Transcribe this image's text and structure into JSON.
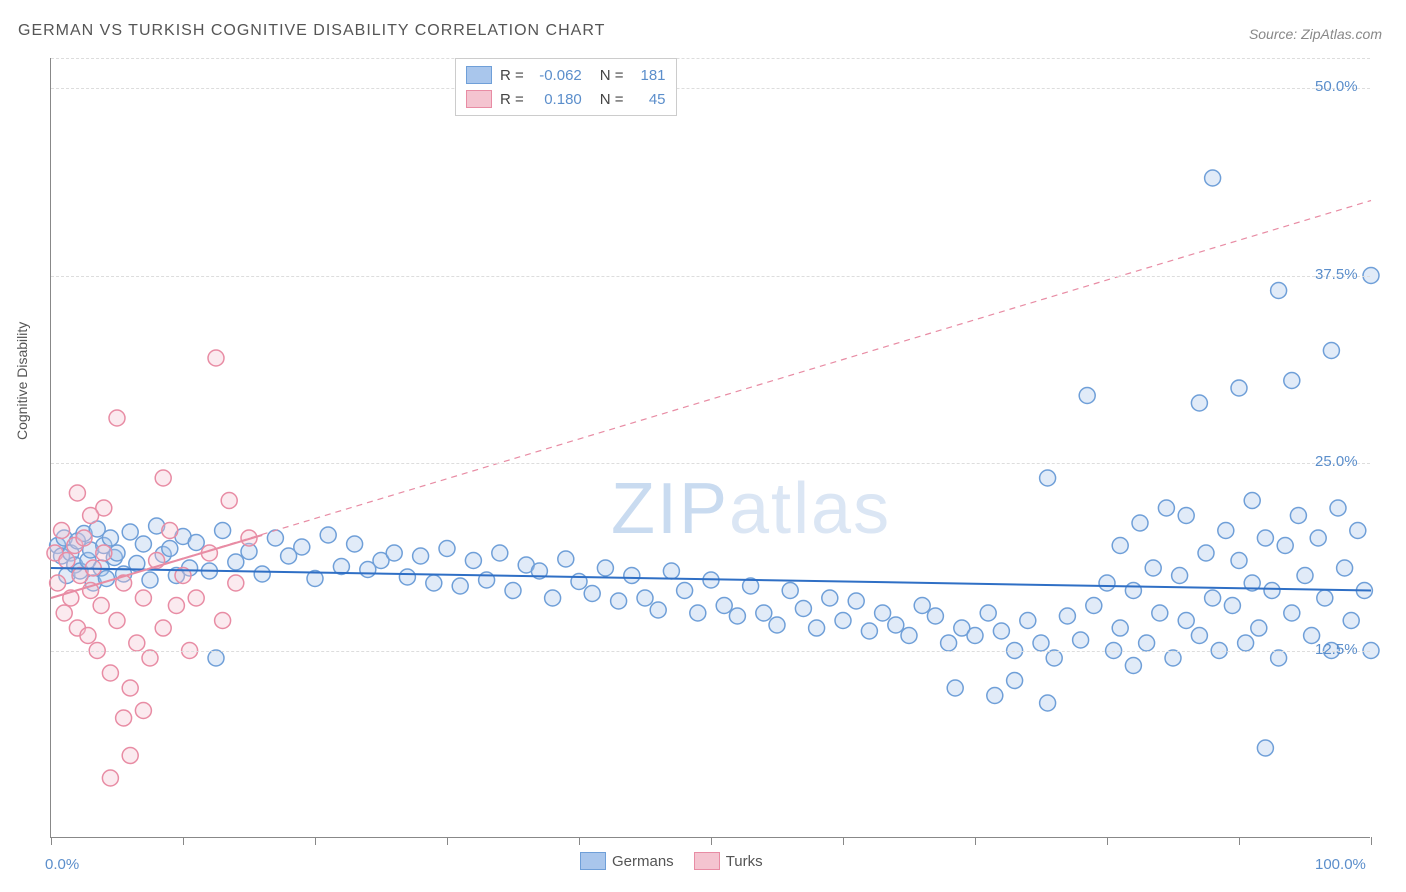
{
  "title": "GERMAN VS TURKISH COGNITIVE DISABILITY CORRELATION CHART",
  "source": "Source: ZipAtlas.com",
  "y_axis_label": "Cognitive Disability",
  "watermark": "ZIPatlas",
  "chart": {
    "type": "scatter",
    "xlim": [
      0,
      100
    ],
    "ylim": [
      0,
      52
    ],
    "x_ticks": [
      0,
      10,
      20,
      30,
      40,
      50,
      60,
      70,
      80,
      90,
      100
    ],
    "x_tick_labels_shown": {
      "0": "0.0%",
      "100": "100.0%"
    },
    "y_grid": [
      12.5,
      25.0,
      37.5,
      50.0
    ],
    "y_tick_labels": [
      "12.5%",
      "25.0%",
      "37.5%",
      "50.0%"
    ],
    "background_color": "#ffffff",
    "grid_color": "#dddddd",
    "axis_color": "#888888",
    "tick_label_color": "#5b8ecb",
    "marker_radius": 8,
    "marker_stroke_width": 1.5,
    "marker_fill_opacity": 0.35,
    "series": [
      {
        "name": "Germans",
        "color_fill": "#a9c6ec",
        "color_stroke": "#6f9fd8",
        "r_label": "-0.062",
        "n_label": "181",
        "trend": {
          "x1": 0,
          "y1": 18.0,
          "x2": 100,
          "y2": 16.5,
          "stroke": "#2f6fc5",
          "width": 2,
          "dash": ""
        },
        "points": [
          [
            0.5,
            19.5
          ],
          [
            0.8,
            18.8
          ],
          [
            1.0,
            20.0
          ],
          [
            1.2,
            17.5
          ],
          [
            1.5,
            19.0
          ],
          [
            1.8,
            18.2
          ],
          [
            2.0,
            19.8
          ],
          [
            2.2,
            17.8
          ],
          [
            2.5,
            20.3
          ],
          [
            2.8,
            18.5
          ],
          [
            3.0,
            19.2
          ],
          [
            3.2,
            17.0
          ],
          [
            3.5,
            20.6
          ],
          [
            3.8,
            18.0
          ],
          [
            4.0,
            19.5
          ],
          [
            4.2,
            17.3
          ],
          [
            4.5,
            20.0
          ],
          [
            4.8,
            18.7
          ],
          [
            5.0,
            19.0
          ],
          [
            5.5,
            17.6
          ],
          [
            6.0,
            20.4
          ],
          [
            6.5,
            18.3
          ],
          [
            7.0,
            19.6
          ],
          [
            7.5,
            17.2
          ],
          [
            8.0,
            20.8
          ],
          [
            8.5,
            18.9
          ],
          [
            9.0,
            19.3
          ],
          [
            9.5,
            17.5
          ],
          [
            10.0,
            20.1
          ],
          [
            10.5,
            18.0
          ],
          [
            11.0,
            19.7
          ],
          [
            12.0,
            17.8
          ],
          [
            13.0,
            20.5
          ],
          [
            12.5,
            12.0
          ],
          [
            14.0,
            18.4
          ],
          [
            15.0,
            19.1
          ],
          [
            16.0,
            17.6
          ],
          [
            17.0,
            20.0
          ],
          [
            18.0,
            18.8
          ],
          [
            19.0,
            19.4
          ],
          [
            20.0,
            17.3
          ],
          [
            21.0,
            20.2
          ],
          [
            22.0,
            18.1
          ],
          [
            23.0,
            19.6
          ],
          [
            24.0,
            17.9
          ],
          [
            25.0,
            18.5
          ],
          [
            26.0,
            19.0
          ],
          [
            27.0,
            17.4
          ],
          [
            28.0,
            18.8
          ],
          [
            29.0,
            17.0
          ],
          [
            30.0,
            19.3
          ],
          [
            31.0,
            16.8
          ],
          [
            32.0,
            18.5
          ],
          [
            33.0,
            17.2
          ],
          [
            34.0,
            19.0
          ],
          [
            35.0,
            16.5
          ],
          [
            36.0,
            18.2
          ],
          [
            37.0,
            17.8
          ],
          [
            38.0,
            16.0
          ],
          [
            39.0,
            18.6
          ],
          [
            40.0,
            17.1
          ],
          [
            41.0,
            16.3
          ],
          [
            42.0,
            18.0
          ],
          [
            43.0,
            15.8
          ],
          [
            44.0,
            17.5
          ],
          [
            45.0,
            16.0
          ],
          [
            46.0,
            15.2
          ],
          [
            47.0,
            17.8
          ],
          [
            48.0,
            16.5
          ],
          [
            49.0,
            15.0
          ],
          [
            50.0,
            17.2
          ],
          [
            51.0,
            15.5
          ],
          [
            52.0,
            14.8
          ],
          [
            53.0,
            16.8
          ],
          [
            54.0,
            15.0
          ],
          [
            55.0,
            14.2
          ],
          [
            56.0,
            16.5
          ],
          [
            57.0,
            15.3
          ],
          [
            58.0,
            14.0
          ],
          [
            59.0,
            16.0
          ],
          [
            60.0,
            14.5
          ],
          [
            61.0,
            15.8
          ],
          [
            62.0,
            13.8
          ],
          [
            63.0,
            15.0
          ],
          [
            64.0,
            14.2
          ],
          [
            65.0,
            13.5
          ],
          [
            66.0,
            15.5
          ],
          [
            67.0,
            14.8
          ],
          [
            68.0,
            13.0
          ],
          [
            69.0,
            14.0
          ],
          [
            68.5,
            10.0
          ],
          [
            70.0,
            13.5
          ],
          [
            71.0,
            15.0
          ],
          [
            71.5,
            9.5
          ],
          [
            72.0,
            13.8
          ],
          [
            73.0,
            12.5
          ],
          [
            73.0,
            10.5
          ],
          [
            74.0,
            14.5
          ],
          [
            75.0,
            13.0
          ],
          [
            75.5,
            9.0
          ],
          [
            76.0,
            12.0
          ],
          [
            75.5,
            24.0
          ],
          [
            77.0,
            14.8
          ],
          [
            78.0,
            13.2
          ],
          [
            78.5,
            29.5
          ],
          [
            79.0,
            15.5
          ],
          [
            80.0,
            17.0
          ],
          [
            80.5,
            12.5
          ],
          [
            81.0,
            14.0
          ],
          [
            81.0,
            19.5
          ],
          [
            82.0,
            16.5
          ],
          [
            82.0,
            11.5
          ],
          [
            82.5,
            21.0
          ],
          [
            83.0,
            13.0
          ],
          [
            83.5,
            18.0
          ],
          [
            84.0,
            15.0
          ],
          [
            84.5,
            22.0
          ],
          [
            85.0,
            12.0
          ],
          [
            85.5,
            17.5
          ],
          [
            86.0,
            14.5
          ],
          [
            86.0,
            21.5
          ],
          [
            87.0,
            13.5
          ],
          [
            87.0,
            29.0
          ],
          [
            87.5,
            19.0
          ],
          [
            88.0,
            16.0
          ],
          [
            88.0,
            44.0
          ],
          [
            88.5,
            12.5
          ],
          [
            89.0,
            20.5
          ],
          [
            89.5,
            15.5
          ],
          [
            90.0,
            18.5
          ],
          [
            90.0,
            30.0
          ],
          [
            90.5,
            13.0
          ],
          [
            91.0,
            17.0
          ],
          [
            91.0,
            22.5
          ],
          [
            91.5,
            14.0
          ],
          [
            92.0,
            20.0
          ],
          [
            92.5,
            16.5
          ],
          [
            93.0,
            12.0
          ],
          [
            93.0,
            36.5
          ],
          [
            93.5,
            19.5
          ],
          [
            94.0,
            15.0
          ],
          [
            94.0,
            30.5
          ],
          [
            94.5,
            21.5
          ],
          [
            95.0,
            17.5
          ],
          [
            95.5,
            13.5
          ],
          [
            96.0,
            20.0
          ],
          [
            96.5,
            16.0
          ],
          [
            97.0,
            12.5
          ],
          [
            97.0,
            32.5
          ],
          [
            97.5,
            22.0
          ],
          [
            98.0,
            18.0
          ],
          [
            98.5,
            14.5
          ],
          [
            99.0,
            20.5
          ],
          [
            99.5,
            16.5
          ],
          [
            100.0,
            12.5
          ],
          [
            100.0,
            37.5
          ],
          [
            92.0,
            6.0
          ]
        ]
      },
      {
        "name": "Turks",
        "color_fill": "#f4c4d0",
        "color_stroke": "#e88ca4",
        "r_label": "0.180",
        "n_label": "45",
        "trend": {
          "x1": 0,
          "y1": 16.0,
          "x2": 100,
          "y2": 42.5,
          "stroke": "#e88ca4",
          "width": 1.2,
          "dash": "6 5"
        },
        "trend_solid": {
          "x1": 0,
          "y1": 16.0,
          "x2": 16,
          "y2": 20.2,
          "stroke": "#e88ca4",
          "width": 2
        },
        "points": [
          [
            0.3,
            19.0
          ],
          [
            0.5,
            17.0
          ],
          [
            0.8,
            20.5
          ],
          [
            1.0,
            15.0
          ],
          [
            1.2,
            18.5
          ],
          [
            1.5,
            16.0
          ],
          [
            1.8,
            19.5
          ],
          [
            2.0,
            14.0
          ],
          [
            2.2,
            17.5
          ],
          [
            2.5,
            20.0
          ],
          [
            2.8,
            13.5
          ],
          [
            3.0,
            16.5
          ],
          [
            3.2,
            18.0
          ],
          [
            3.5,
            12.5
          ],
          [
            3.8,
            15.5
          ],
          [
            4.0,
            19.0
          ],
          [
            4.5,
            11.0
          ],
          [
            5.0,
            14.5
          ],
          [
            5.5,
            17.0
          ],
          [
            6.0,
            10.0
          ],
          [
            5.0,
            28.0
          ],
          [
            4.0,
            22.0
          ],
          [
            6.5,
            13.0
          ],
          [
            7.0,
            16.0
          ],
          [
            7.5,
            12.0
          ],
          [
            8.0,
            18.5
          ],
          [
            8.5,
            14.0
          ],
          [
            9.0,
            20.5
          ],
          [
            9.5,
            15.5
          ],
          [
            10.0,
            17.5
          ],
          [
            5.5,
            8.0
          ],
          [
            7.0,
            8.5
          ],
          [
            8.5,
            24.0
          ],
          [
            11.0,
            16.0
          ],
          [
            12.0,
            19.0
          ],
          [
            12.5,
            32.0
          ],
          [
            13.0,
            14.5
          ],
          [
            13.5,
            22.5
          ],
          [
            14.0,
            17.0
          ],
          [
            15.0,
            20.0
          ],
          [
            4.5,
            4.0
          ],
          [
            6.0,
            5.5
          ],
          [
            3.0,
            21.5
          ],
          [
            2.0,
            23.0
          ],
          [
            10.5,
            12.5
          ]
        ]
      }
    ]
  },
  "legend_top": [
    {
      "swatch_fill": "#a9c6ec",
      "swatch_stroke": "#6f9fd8",
      "r": "-0.062",
      "n": "181"
    },
    {
      "swatch_fill": "#f4c4d0",
      "swatch_stroke": "#e88ca4",
      "r": "0.180",
      "n": "45"
    }
  ],
  "legend_bottom": [
    {
      "swatch_fill": "#a9c6ec",
      "swatch_stroke": "#6f9fd8",
      "label": "Germans"
    },
    {
      "swatch_fill": "#f4c4d0",
      "swatch_stroke": "#e88ca4",
      "label": "Turks"
    }
  ]
}
